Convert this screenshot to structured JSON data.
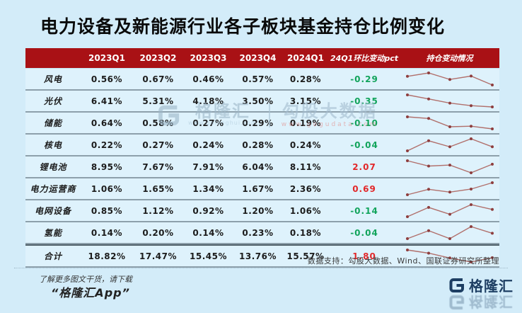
{
  "title": "电力设备及新能源行业各子板块基金持仓比例变化",
  "colors": {
    "page_bg": "#d3ecf9",
    "row_bg": "#def2fc",
    "header_bg": "#a91115",
    "positive": "#e2282a",
    "negative": "#12a45c",
    "spark_line": "#b1706c",
    "spark_dot": "#8e3e3e"
  },
  "table": {
    "columns": [
      "",
      "2023Q1",
      "2023Q2",
      "2023Q3",
      "2023Q4",
      "2024Q1",
      "24Q1环比变动pct",
      "持仓变动情况"
    ],
    "rows": [
      {
        "label": "风电",
        "values": [
          "0.56%",
          "0.67%",
          "0.46%",
          "0.57%",
          "0.28%"
        ],
        "change": "-0.29",
        "trend": "negative",
        "spark": [
          0.56,
          0.67,
          0.46,
          0.57,
          0.28
        ],
        "total": false
      },
      {
        "label": "光伏",
        "values": [
          "6.41%",
          "5.31%",
          "4.18%",
          "3.50%",
          "3.15%"
        ],
        "change": "-0.35",
        "trend": "negative",
        "spark": [
          6.41,
          5.31,
          4.18,
          3.5,
          3.15
        ],
        "total": false
      },
      {
        "label": "储能",
        "values": [
          "0.64%",
          "0.58%",
          "0.27%",
          "0.29%",
          "0.19%"
        ],
        "change": "-0.10",
        "trend": "negative",
        "spark": [
          0.64,
          0.58,
          0.27,
          0.29,
          0.19
        ],
        "total": false
      },
      {
        "label": "核电",
        "values": [
          "0.22%",
          "0.27%",
          "0.24%",
          "0.28%",
          "0.24%"
        ],
        "change": "-0.04",
        "trend": "negative",
        "spark": [
          0.22,
          0.27,
          0.24,
          0.28,
          0.24
        ],
        "total": false
      },
      {
        "label": "锂电池",
        "values": [
          "8.95%",
          "7.67%",
          "7.91%",
          "6.04%",
          "8.11%"
        ],
        "change": "2.07",
        "trend": "positive",
        "spark": [
          8.95,
          7.67,
          7.91,
          6.04,
          8.11
        ],
        "total": false
      },
      {
        "label": "电力运营商",
        "values": [
          "1.06%",
          "1.65%",
          "1.34%",
          "1.67%",
          "2.36%"
        ],
        "change": "0.69",
        "trend": "positive",
        "spark": [
          1.06,
          1.65,
          1.34,
          1.67,
          2.36
        ],
        "total": false
      },
      {
        "label": "电网设备",
        "values": [
          "0.85%",
          "1.12%",
          "0.92%",
          "1.20%",
          "1.06%"
        ],
        "change": "-0.14",
        "trend": "negative",
        "spark": [
          0.85,
          1.12,
          0.92,
          1.2,
          1.06
        ],
        "total": false
      },
      {
        "label": "氢能",
        "values": [
          "0.14%",
          "0.20%",
          "0.14%",
          "0.23%",
          "0.18%"
        ],
        "change": "-0.04",
        "trend": "negative",
        "spark": [
          0.14,
          0.2,
          0.14,
          0.23,
          0.18
        ],
        "total": false
      },
      {
        "label": "合计",
        "values": [
          "18.82%",
          "17.47%",
          "15.45%",
          "13.76%",
          "15.57%"
        ],
        "change": "1.80",
        "trend": "positive",
        "spark": [
          18.82,
          17.47,
          15.45,
          13.76,
          15.57
        ],
        "total": true
      }
    ]
  },
  "chart_data": {
    "type": "table",
    "title": "电力设备及新能源行业各子板块基金持仓比例变化",
    "columns": [
      "2023Q1",
      "2023Q2",
      "2023Q3",
      "2023Q4",
      "2024Q1",
      "24Q1环比变动pct"
    ],
    "sparkline_column": "持仓变动情况",
    "rows": [
      {
        "name": "风电",
        "values": [
          0.56,
          0.67,
          0.46,
          0.57,
          0.28
        ],
        "qoq_change_pct": -0.29
      },
      {
        "name": "光伏",
        "values": [
          6.41,
          5.31,
          4.18,
          3.5,
          3.15
        ],
        "qoq_change_pct": -0.35
      },
      {
        "name": "储能",
        "values": [
          0.64,
          0.58,
          0.27,
          0.29,
          0.19
        ],
        "qoq_change_pct": -0.1
      },
      {
        "name": "核电",
        "values": [
          0.22,
          0.27,
          0.24,
          0.28,
          0.24
        ],
        "qoq_change_pct": -0.04
      },
      {
        "name": "锂电池",
        "values": [
          8.95,
          7.67,
          7.91,
          6.04,
          8.11
        ],
        "qoq_change_pct": 2.07
      },
      {
        "name": "电力运营商",
        "values": [
          1.06,
          1.65,
          1.34,
          1.67,
          2.36
        ],
        "qoq_change_pct": 0.69
      },
      {
        "name": "电网设备",
        "values": [
          0.85,
          1.12,
          0.92,
          1.2,
          1.06
        ],
        "qoq_change_pct": -0.14
      },
      {
        "name": "氢能",
        "values": [
          0.14,
          0.2,
          0.14,
          0.23,
          0.18
        ],
        "qoq_change_pct": -0.04
      },
      {
        "name": "合计",
        "values": [
          18.82,
          17.47,
          15.45,
          13.76,
          15.57
        ],
        "qoq_change_pct": 1.8
      }
    ]
  },
  "watermark": {
    "brand": "格隆汇",
    "brand_url": "www.gelonghui.com",
    "product": "勾股大数据",
    "product_url": "www.gogudata.com"
  },
  "source": "数据支持：勾股大数据、Wind、国联证券研究所整理",
  "footer": {
    "promo_line1": "了解更多图文干货，请下载",
    "promo_line2": "“格隆汇App”",
    "logo_text": "格隆汇"
  }
}
